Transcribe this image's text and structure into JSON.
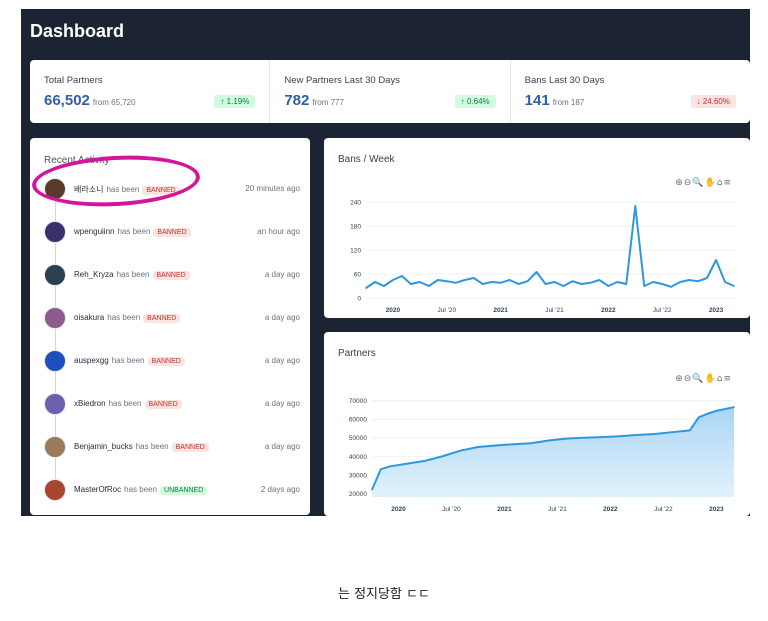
{
  "header": {
    "title": "Dashboard"
  },
  "stats": [
    {
      "label": "Total Partners",
      "value": "66,502",
      "from": "from 65,720",
      "change": "↑ 1.19%",
      "trend": "up"
    },
    {
      "label": "New Partners Last 30 Days",
      "value": "782",
      "from": "from 777",
      "change": "↑ 0.64%",
      "trend": "up"
    },
    {
      "label": "Bans Last 30 Days",
      "value": "141",
      "from": "from 187",
      "change": "↓ 24.60%",
      "trend": "down"
    }
  ],
  "activity": {
    "title": "Recent Activity",
    "has_been": "has been",
    "items": [
      {
        "user": "배라소니",
        "status": "BANNED",
        "time": "20 minutes ago",
        "avatar_color": "#5b3a2e"
      },
      {
        "user": "wpenguiinn",
        "status": "BANNED",
        "time": "an hour ago",
        "avatar_color": "#3b2f6e"
      },
      {
        "user": "Reh_Kryza",
        "status": "BANNED",
        "time": "a day ago",
        "avatar_color": "#2c3e50"
      },
      {
        "user": "oisakura",
        "status": "BANNED",
        "time": "a day ago",
        "avatar_color": "#8e5a8c"
      },
      {
        "user": "auspexgg",
        "status": "BANNED",
        "time": "a day ago",
        "avatar_color": "#1f4fbf"
      },
      {
        "user": "xBiedron",
        "status": "BANNED",
        "time": "a day ago",
        "avatar_color": "#6d5fb0"
      },
      {
        "user": "Benjamin_bucks",
        "status": "BANNED",
        "time": "a day ago",
        "avatar_color": "#9a7a5a"
      },
      {
        "user": "MasterOfRoc",
        "status": "UNBANNED",
        "time": "2 days ago",
        "avatar_color": "#a8452e"
      }
    ]
  },
  "chart_toolbar": "⊕⊖🔍✋⌂≡",
  "chart_data": [
    {
      "type": "line",
      "title": "Bans / Week",
      "x_ticks": [
        "2020",
        "Jul '20",
        "2021",
        "Jul '21",
        "2022",
        "Jul '22",
        "2023"
      ],
      "y_ticks": [
        0,
        60,
        120,
        180,
        240
      ],
      "ylim": [
        0,
        250
      ],
      "x": [
        "2019-10",
        "2019-11",
        "2019-12",
        "2020-01",
        "2020-02",
        "2020-03",
        "2020-04",
        "2020-05",
        "2020-06",
        "2020-07",
        "2020-08",
        "2020-09",
        "2020-10",
        "2020-11",
        "2020-12",
        "2021-01",
        "2021-02",
        "2021-03",
        "2021-04",
        "2021-05",
        "2021-06",
        "2021-07",
        "2021-08",
        "2021-09",
        "2021-10",
        "2021-11",
        "2021-12",
        "2022-01",
        "2022-02",
        "2022-03",
        "2022-04",
        "2022-05",
        "2022-06",
        "2022-07",
        "2022-08",
        "2022-09",
        "2022-10",
        "2022-11",
        "2022-12",
        "2023-01",
        "2023-02",
        "2023-03"
      ],
      "values": [
        25,
        40,
        30,
        45,
        55,
        35,
        40,
        30,
        45,
        42,
        38,
        45,
        50,
        35,
        40,
        38,
        45,
        35,
        42,
        65,
        35,
        40,
        30,
        42,
        35,
        38,
        45,
        30,
        40,
        35,
        230,
        30,
        40,
        35,
        28,
        40,
        45,
        42,
        50,
        95,
        40,
        30
      ],
      "color": "#2e97dd"
    },
    {
      "type": "area",
      "title": "Partners",
      "x_ticks": [
        "2020",
        "Jul '20",
        "2021",
        "Jul '21",
        "2022",
        "Jul '22",
        "2023"
      ],
      "y_ticks": [
        20000,
        30000,
        40000,
        50000,
        60000,
        70000
      ],
      "ylim": [
        18000,
        72000
      ],
      "x": [
        "2019-10",
        "2019-11",
        "2019-12",
        "2020-02",
        "2020-04",
        "2020-06",
        "2020-08",
        "2020-10",
        "2020-12",
        "2021-02",
        "2021-04",
        "2021-06",
        "2021-08",
        "2021-10",
        "2021-12",
        "2022-02",
        "2022-04",
        "2022-06",
        "2022-08",
        "2022-10",
        "2022-11",
        "2022-12",
        "2023-01",
        "2023-02",
        "2023-03"
      ],
      "values": [
        22000,
        33000,
        34500,
        36000,
        37500,
        40000,
        43000,
        45000,
        45800,
        46500,
        47000,
        48500,
        49500,
        50000,
        50300,
        50800,
        51500,
        52000,
        53000,
        54000,
        61000,
        63000,
        64500,
        65500,
        66500
      ],
      "color": "#2e97dd"
    }
  ],
  "caption": "는 정지당함 ㄷㄷ"
}
